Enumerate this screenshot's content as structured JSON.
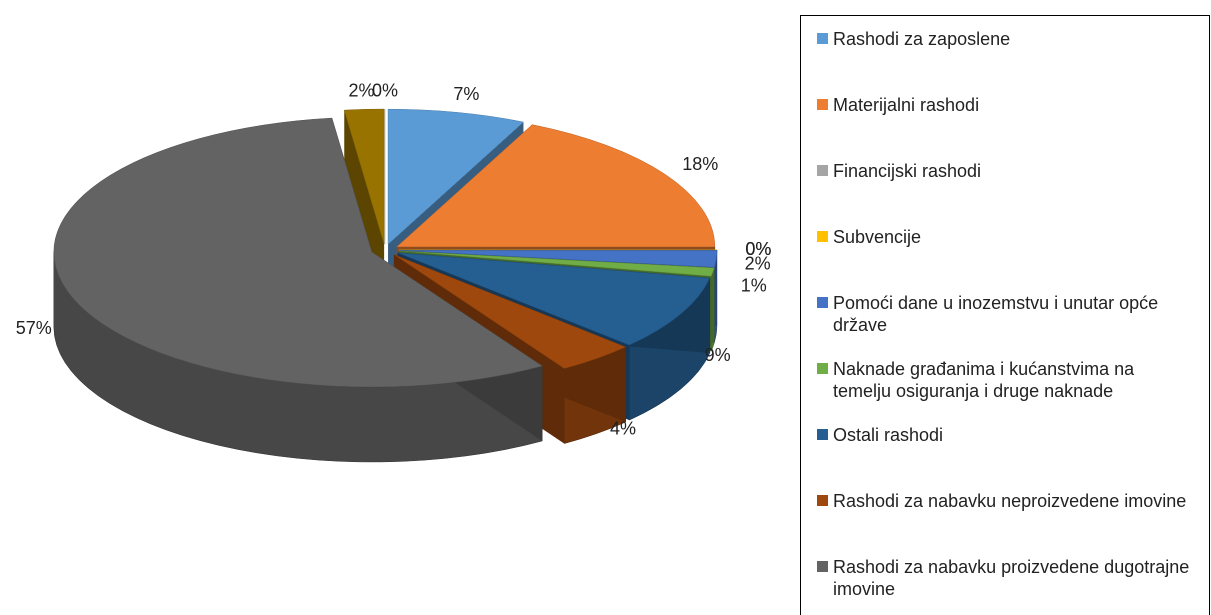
{
  "chart_data": {
    "type": "pie",
    "categories": [
      "Rashodi za zaposlene",
      "Materijalni rashodi",
      "Financijski rashodi",
      "Subvencije",
      "Pomoći dane u inozemstvu i unutar opće države",
      "Naknade građanima i kućanstvima na temelju osiguranja i druge naknade",
      "Ostali rashodi",
      "Rashodi za nabavku neproizvedene imovine",
      "Rashodi za nabavku proizvedene dugotrajne imovine",
      null,
      null
    ],
    "values": [
      7,
      18,
      0,
      0,
      2,
      1,
      9,
      4,
      57,
      2,
      0
    ],
    "value_labels": [
      "7%",
      "18%",
      "0%",
      "0%",
      "2%",
      "1%",
      "9%",
      "4%",
      "57%",
      "2%",
      "0%"
    ],
    "colors": [
      "#5b9bd5",
      "#ed7d31",
      "#a5a5a5",
      "#ffc000",
      "#4472c4",
      "#70ad47",
      "#255e91",
      "#9e480e",
      "#636363",
      "#997300",
      "#e6eef8"
    ],
    "legend": "right"
  }
}
